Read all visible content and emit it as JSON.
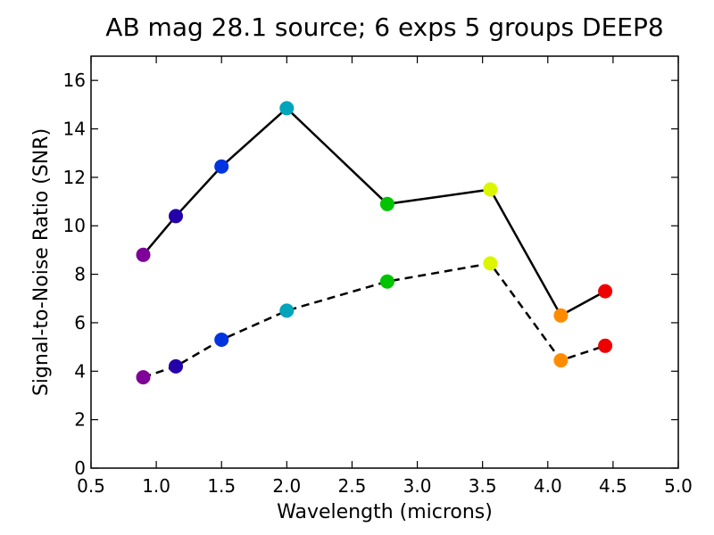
{
  "chart_data": {
    "type": "line",
    "title": "AB mag 28.1 source; 6 exps 5 groups DEEP8",
    "xlabel": "Wavelength (microns)",
    "ylabel": "Signal-to-Noise Ratio (SNR)",
    "xlim": [
      0.5,
      5.0
    ],
    "ylim": [
      0,
      17
    ],
    "grid": false,
    "x_ticks": [
      "0.5",
      "1.0",
      "1.5",
      "2.0",
      "2.5",
      "3.0",
      "3.5",
      "4.0",
      "4.5",
      "5.0"
    ],
    "y_ticks": [
      "0",
      "2",
      "4",
      "6",
      "8",
      "10",
      "12",
      "14",
      "16"
    ],
    "x": [
      0.9,
      1.15,
      1.5,
      2.0,
      2.77,
      3.56,
      4.1,
      4.44
    ],
    "point_colors": [
      "#7f0099",
      "#2400a8",
      "#0034e0",
      "#00a4bb",
      "#00c400",
      "#dcf500",
      "#ff8c00",
      "#ee0000"
    ],
    "series": [
      {
        "style": "solid",
        "color": "#000000",
        "values": [
          8.8,
          10.4,
          12.45,
          14.85,
          10.9,
          11.5,
          6.3,
          7.3
        ]
      },
      {
        "style": "dashed",
        "color": "#000000",
        "values": [
          3.75,
          4.2,
          5.3,
          6.5,
          7.7,
          8.45,
          4.45,
          5.05
        ]
      }
    ]
  }
}
